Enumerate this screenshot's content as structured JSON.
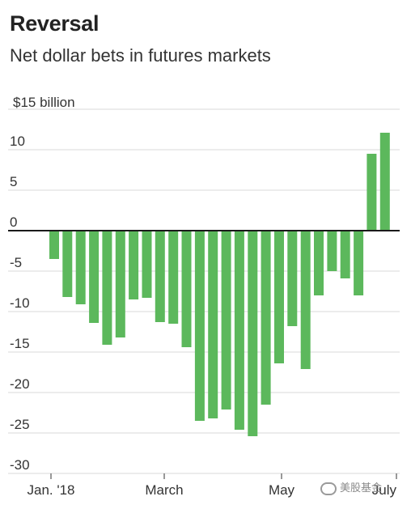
{
  "chart_data": {
    "type": "bar",
    "title": "Reversal",
    "subtitle": "Net dollar bets in futures markets",
    "unit_label": "$15 billion",
    "ylim": [
      -30,
      15
    ],
    "yticks": [
      10,
      5,
      0,
      -5,
      -10,
      -15,
      -20,
      -25,
      -30
    ],
    "ytick_labels": [
      "10",
      "5",
      "0",
      "-5",
      "-10",
      "-15",
      "-20",
      "-25",
      "-30"
    ],
    "xtick_labels": [
      "Jan. '18",
      "March",
      "May",
      "July"
    ],
    "grid": true,
    "colors": {
      "bar": "#5cb85c",
      "zero_line": "#1a1a1a",
      "grid": "#d9d9d9"
    },
    "series": [
      {
        "values": [
          -3.5,
          -8.2,
          -9.1,
          -11.4,
          -14.1,
          -13.2,
          -8.5,
          -8.3,
          -11.3,
          -11.5,
          -14.4,
          -23.5,
          -23.2,
          -22.1,
          -24.6,
          -25.4,
          -21.5,
          -16.4,
          -11.8,
          -17.1,
          -8.0,
          -5.0,
          -5.9,
          -8.0,
          9.5,
          12.1
        ]
      }
    ]
  },
  "watermark": {
    "text": "美股基金",
    "icon": "wechat-icon"
  }
}
